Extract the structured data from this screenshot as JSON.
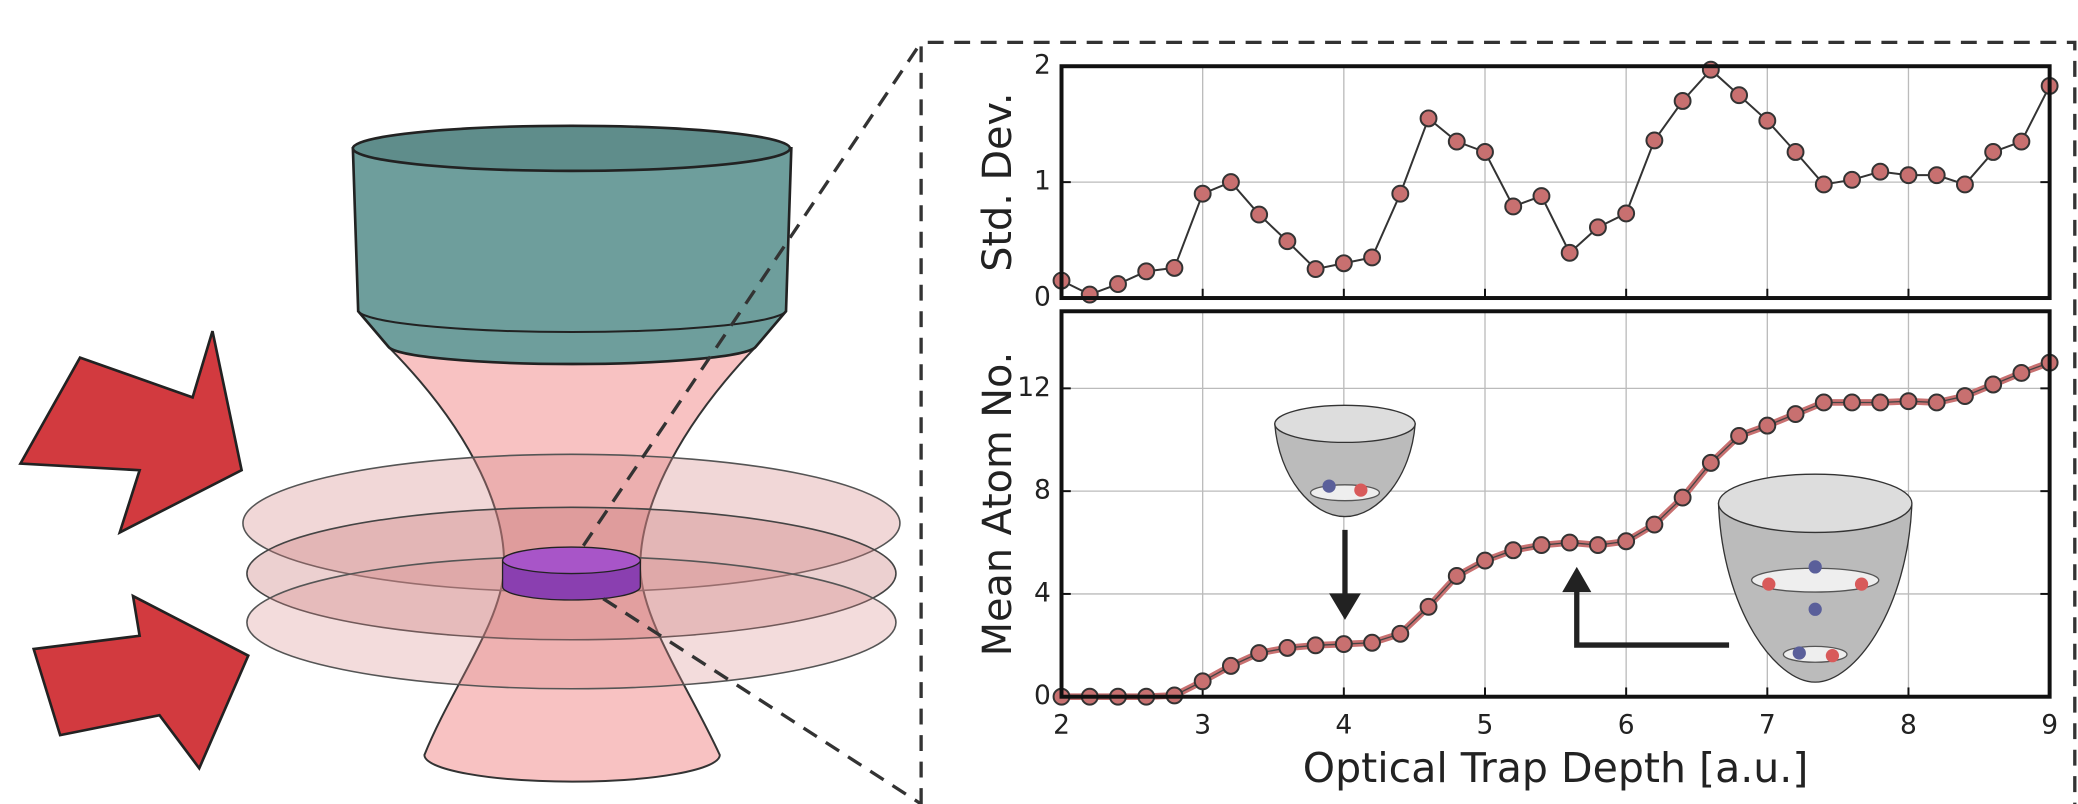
{
  "chart_data": [
    {
      "type": "line",
      "y_label": "Std. Dev.",
      "x": [
        2.0,
        2.2,
        2.4,
        2.6,
        2.8,
        3.0,
        3.2,
        3.4,
        3.6,
        3.8,
        4.0,
        4.2,
        4.4,
        4.6,
        4.8,
        5.0,
        5.2,
        5.4,
        5.6,
        5.8,
        6.0,
        6.2,
        6.4,
        6.6,
        6.8,
        7.0,
        7.2,
        7.4,
        7.6,
        7.8,
        8.0,
        8.2,
        8.4,
        8.6,
        8.8,
        9.0
      ],
      "series": [
        {
          "color": "#c87070",
          "values": [
            0.15,
            0.03,
            0.12,
            0.23,
            0.26,
            0.9,
            1.0,
            0.72,
            0.49,
            0.25,
            0.3,
            0.35,
            0.9,
            1.55,
            1.35,
            1.26,
            0.79,
            0.88,
            0.39,
            0.61,
            0.73,
            1.36,
            1.7,
            1.97,
            1.75,
            1.53,
            1.26,
            0.98,
            1.02,
            1.09,
            1.06,
            1.06,
            0.98,
            1.26,
            1.35,
            1.83
          ]
        }
      ],
      "xlim": [
        2,
        9
      ],
      "xticks": [
        2,
        3,
        4,
        5,
        6,
        7,
        8,
        9
      ],
      "ylim": [
        0,
        2
      ],
      "yticks": [
        0,
        1,
        2
      ],
      "grid": true
    },
    {
      "type": "line",
      "y_label": "Mean Atom No.",
      "x_label": "Optical Trap Depth [a.u.]",
      "x": [
        2.0,
        2.2,
        2.4,
        2.6,
        2.8,
        3.0,
        3.2,
        3.4,
        3.6,
        3.8,
        4.0,
        4.2,
        4.4,
        4.6,
        4.8,
        5.0,
        5.2,
        5.4,
        5.6,
        5.8,
        6.0,
        6.2,
        6.4,
        6.6,
        6.8,
        7.0,
        7.2,
        7.4,
        7.6,
        7.8,
        8.0,
        8.2,
        8.4,
        8.6,
        8.8,
        9.0
      ],
      "series": [
        {
          "color": "#c87070",
          "values": [
            0,
            0,
            0,
            0,
            0.05,
            0.6,
            1.2,
            1.7,
            1.9,
            2.0,
            2.05,
            2.1,
            2.45,
            3.5,
            4.7,
            5.3,
            5.7,
            5.9,
            6.0,
            5.9,
            6.05,
            6.7,
            7.75,
            9.1,
            10.15,
            10.55,
            11.0,
            11.45,
            11.45,
            11.45,
            11.5,
            11.45,
            11.7,
            12.15,
            12.6,
            13.0
          ]
        }
      ],
      "xlim": [
        2,
        9
      ],
      "xticks": [
        2,
        3,
        4,
        5,
        6,
        7,
        8,
        9
      ],
      "ylim": [
        0,
        15
      ],
      "yticks": [
        0,
        4,
        8,
        12
      ],
      "grid": true
    }
  ]
}
